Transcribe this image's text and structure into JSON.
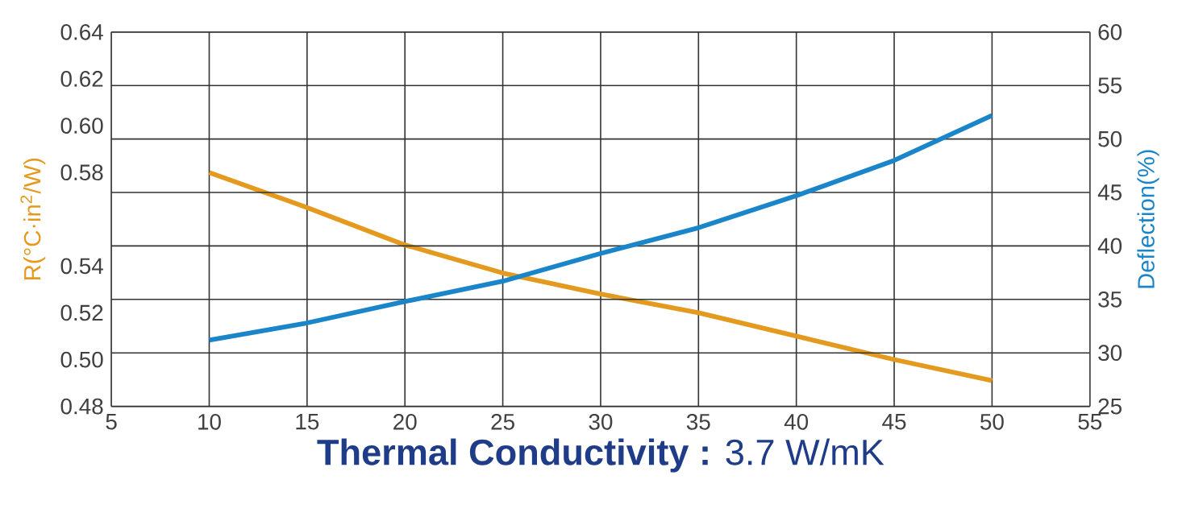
{
  "chart_data": {
    "type": "line",
    "title": "**Thermal Conductivity :** 3.7 W/mK",
    "ylabel": "R(°C·in$^{2}$/W)",
    "y2label": "Deflection(%)",
    "x": [
      10,
      15,
      20,
      25,
      30,
      35,
      40,
      45,
      50
    ],
    "series": [
      {
        "color": "#e39a1f",
        "values": [
          0.58,
          0.565,
          0.549,
          0.537,
          0.528,
          0.52,
          0.51,
          0.5,
          0.491
        ]
      },
      {
        "color": "#1a85c8",
        "axis": "y2",
        "values": [
          31.2,
          32.8,
          34.8,
          36.7,
          39.3,
          41.7,
          44.7,
          48,
          52.2
        ]
      }
    ],
    "xlim": [
      5,
      55
    ],
    "xticks": [
      5,
      10,
      15,
      20,
      25,
      30,
      35,
      40,
      45,
      50,
      55
    ],
    "ylim": [
      0.48,
      0.64
    ],
    "yticks": [
      0.48,
      {
        "value": 0.5,
        "label": "0.50"
      },
      0.52,
      0.54,
      0.58,
      {
        "value": 0.6,
        "label": "0.60"
      },
      0.62,
      0.64
    ],
    "y2lim": [
      25,
      60
    ],
    "y2ticks": [
      25,
      30,
      35,
      40,
      45,
      50,
      55,
      60
    ],
    "grid": true,
    "marker": "none",
    "line_style": "solid"
  }
}
